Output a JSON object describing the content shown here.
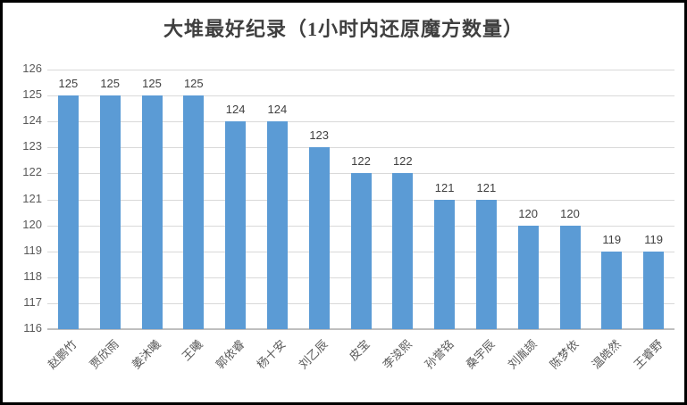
{
  "window": {
    "background": "#ffffff",
    "border_color": "#000000"
  },
  "chart_data": {
    "type": "bar",
    "title": "大堆最好纪录（1小时内还原魔方数量）",
    "categories": [
      "赵鹏竹",
      "贾欣雨",
      "姜沐曦",
      "王曦",
      "郭依睿",
      "杨十安",
      "刘乙辰",
      "皮宝",
      "李浚熙",
      "孙誉铭",
      "桑宇辰",
      "刘胤颉",
      "陈梦依",
      "温皓然",
      "王睿野"
    ],
    "values": [
      125,
      125,
      125,
      125,
      124,
      124,
      123,
      122,
      122,
      121,
      121,
      120,
      120,
      119,
      119
    ],
    "data_labels": [
      "125",
      "125",
      "125",
      "125",
      "124",
      "124",
      "123",
      "122",
      "122",
      "121",
      "121",
      "120",
      "120",
      "119",
      "119"
    ],
    "ylim": [
      116,
      126
    ],
    "ytick_step": 1,
    "ytick_labels": [
      "116",
      "117",
      "118",
      "119",
      "120",
      "121",
      "122",
      "123",
      "124",
      "125",
      "126"
    ],
    "xlabel": "",
    "ylabel": "",
    "grid": true,
    "legend": "none",
    "colors": {
      "bar": "#5B9BD5",
      "gridline": "#D9D9D9",
      "axis_line": "#BFBFBF",
      "data_label": "#404040",
      "tick_label": "#595959",
      "title": "#3F3F3F"
    }
  }
}
